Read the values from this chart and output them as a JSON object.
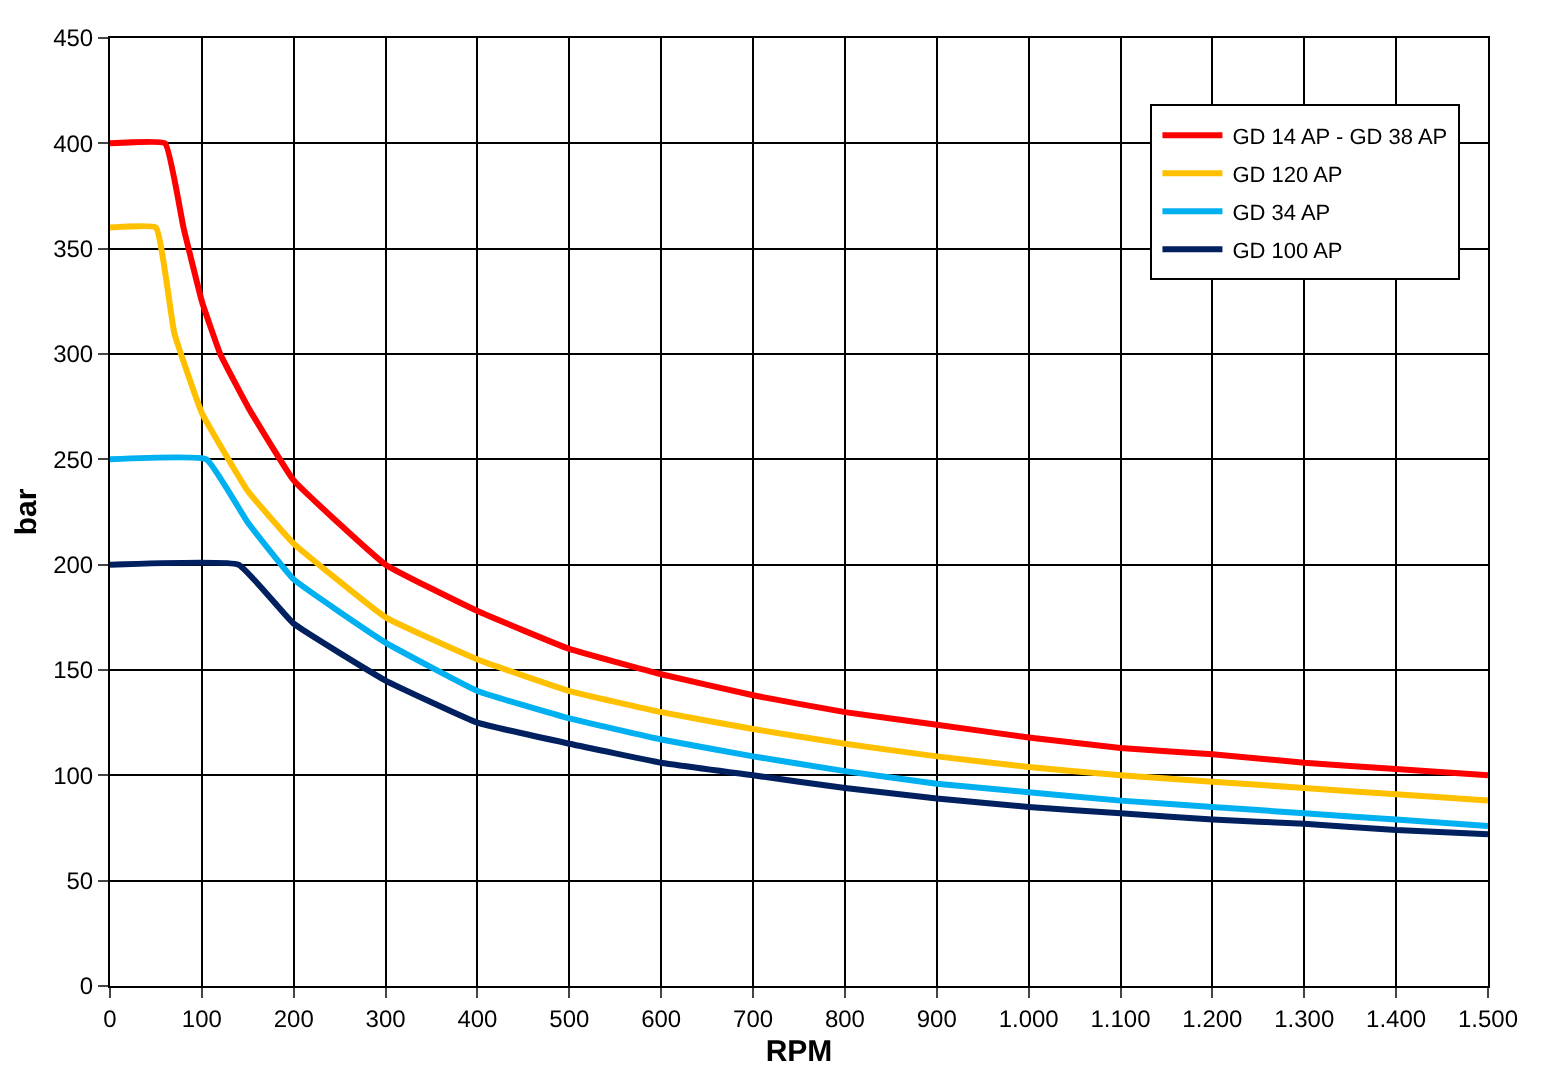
{
  "chart_data": {
    "type": "line",
    "xlabel": "RPM",
    "ylabel": "bar",
    "xlim": [
      0,
      1500
    ],
    "ylim": [
      0,
      450
    ],
    "xticks": [
      0,
      100,
      200,
      300,
      400,
      500,
      600,
      700,
      800,
      900,
      {
        "value": 1000,
        "label": "1.000"
      },
      {
        "value": 1100,
        "label": "1.100"
      },
      {
        "value": 1200,
        "label": "1.200"
      },
      {
        "value": 1300,
        "label": "1.300"
      },
      {
        "value": 1400,
        "label": "1.400"
      },
      {
        "value": 1500,
        "label": "1.500"
      }
    ],
    "yticks": [
      0,
      50,
      100,
      150,
      200,
      250,
      300,
      350,
      400,
      450
    ],
    "grid": true,
    "legend": "top right",
    "marker": "none",
    "line_style": "solid",
    "series": [
      {
        "name": "GD 14 AP - GD 38 AP",
        "color": "#ff0000",
        "x": [
          0,
          60,
          80,
          100,
          120,
          150,
          200,
          300,
          400,
          500,
          600,
          700,
          800,
          900,
          1000,
          1100,
          1200,
          1300,
          1400,
          1500
        ],
        "values": [
          400,
          400,
          360,
          325,
          300,
          275,
          240,
          200,
          178,
          160,
          148,
          138,
          130,
          124,
          118,
          113,
          110,
          106,
          103,
          100
        ]
      },
      {
        "name": "GD 120 AP",
        "color": "#ffc000",
        "x": [
          0,
          50,
          70,
          100,
          150,
          200,
          300,
          400,
          500,
          600,
          700,
          800,
          900,
          1000,
          1100,
          1200,
          1300,
          1400,
          1500
        ],
        "values": [
          360,
          360,
          310,
          272,
          235,
          210,
          175,
          155,
          140,
          130,
          122,
          115,
          109,
          104,
          100,
          97,
          94,
          91,
          88
        ]
      },
      {
        "name": "GD 34 AP",
        "color": "#00b0f0",
        "x": [
          0,
          105,
          150,
          200,
          300,
          400,
          500,
          600,
          700,
          800,
          900,
          1000,
          1100,
          1200,
          1300,
          1400,
          1500
        ],
        "values": [
          250,
          250,
          220,
          193,
          163,
          140,
          127,
          117,
          109,
          102,
          96,
          92,
          88,
          85,
          82,
          79,
          76
        ]
      },
      {
        "name": "GD 100 AP",
        "color": "#002060",
        "x": [
          0,
          140,
          200,
          300,
          400,
          500,
          600,
          700,
          800,
          900,
          1000,
          1100,
          1200,
          1300,
          1400,
          1500
        ],
        "values": [
          200,
          200,
          172,
          145,
          125,
          115,
          106,
          100,
          94,
          89,
          85,
          82,
          79,
          77,
          74,
          72
        ]
      }
    ]
  }
}
